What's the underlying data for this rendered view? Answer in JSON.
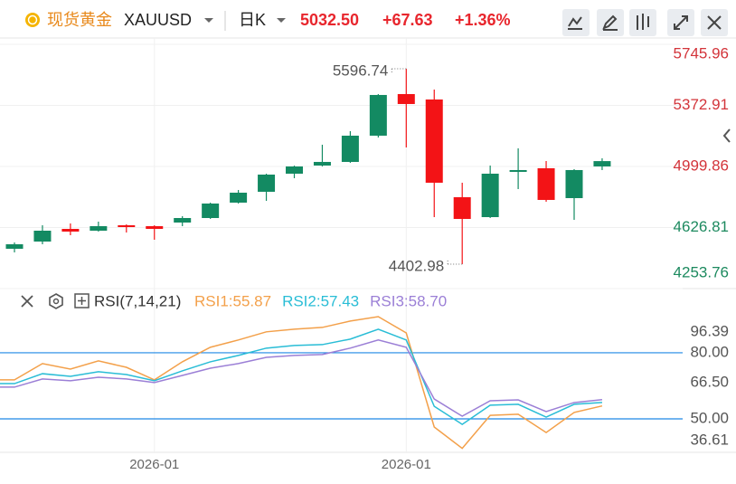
{
  "header": {
    "symbol_name": "现货黄金",
    "symbol": "XAUUSD",
    "period": "日K",
    "price": "5032.50",
    "change": "+67.63",
    "change_pct": "+1.36%"
  },
  "chart_data": [
    {
      "type": "candlestick",
      "categories": [
        null,
        null,
        null,
        null,
        null,
        "2026-01",
        null,
        null,
        null,
        null,
        null,
        null,
        null,
        null,
        "2026-01",
        null,
        null,
        null,
        null,
        null,
        null,
        null
      ],
      "open": [
        4497.0,
        4541.0,
        4618.5,
        4607.4,
        4640.6,
        4635.0,
        4657.2,
        4684.8,
        4778.8,
        4845.1,
        4955.6,
        5005.4,
        5027.5,
        5187.8,
        5442.0,
        5408.9,
        4811.9,
        4690.3,
        4966.7,
        4988.8,
        4806.4,
        4999.86
      ],
      "high": [
        4535.6,
        4640.6,
        4651.7,
        4662.7,
        4646.0,
        4640.6,
        4695.8,
        4778.8,
        4856.0,
        4955.6,
        5005.0,
        5132.5,
        5215.4,
        5442.0,
        5596.74,
        5469.6,
        4900.4,
        5005.4,
        5110.4,
        5033.0,
        4983.3,
        5049.6
      ],
      "low": [
        4474.8,
        4524.5,
        4579.8,
        4601.9,
        4596.4,
        4552.2,
        4635.0,
        4679.3,
        4773.3,
        4789.8,
        4928.0,
        4999.9,
        5022.0,
        5176.7,
        5115.9,
        4690.3,
        4402.98,
        4684.8,
        4861.7,
        4784.3,
        4673.8,
        4977.8
      ],
      "close": [
        4524.5,
        4607.4,
        4601.9,
        4635.0,
        4629.5,
        4618.5,
        4684.8,
        4773.3,
        4839.6,
        4950.1,
        4999.86,
        5027.5,
        5187.8,
        5436.5,
        5381.2,
        4900.4,
        4679.3,
        4955.6,
        4977.8,
        4795.4,
        4977.8,
        5032.5
      ],
      "up_color": "#138a62",
      "down_color": "#f31316",
      "ylim": [
        4253.76,
        5790
      ],
      "yticks": [
        4253.76,
        4626.81,
        4999.86,
        5372.91,
        5745.96
      ],
      "grid": true
    },
    {
      "type": "line",
      "title": "RSI(7,14,21)",
      "series": [
        {
          "name": "RSI1:55.87",
          "color": "#f3a04a",
          "values": [
            67.7,
            75.1,
            72.6,
            76.3,
            73.4,
            67.7,
            75.9,
            82.5,
            85.8,
            89.5,
            90.7,
            91.5,
            94.4,
            96.39,
            89.0,
            46.3,
            36.61,
            51.6,
            52.1,
            43.8,
            52.9,
            55.87
          ]
        },
        {
          "name": "RSI2:57.43",
          "color": "#29bdd6",
          "values": [
            66.0,
            70.5,
            69.3,
            71.4,
            70.1,
            67.3,
            71.8,
            75.9,
            78.8,
            82.1,
            83.3,
            83.7,
            86.2,
            90.7,
            85.8,
            55.7,
            47.5,
            56.2,
            56.6,
            50.8,
            56.6,
            57.43
          ]
        },
        {
          "name": "RSI3:58.70",
          "color": "#9b7fd6",
          "values": [
            64.4,
            68.1,
            67.3,
            68.9,
            68.1,
            66.5,
            69.7,
            73.0,
            75.1,
            77.9,
            78.8,
            79.2,
            82.1,
            85.8,
            82.5,
            59.0,
            51.2,
            58.2,
            58.6,
            53.3,
            57.4,
            58.7
          ]
        }
      ],
      "ylim": [
        34.8,
        107.9
      ],
      "yticks": [
        36.61,
        {
          "value": 50,
          "label": "50.00",
          "color": "#1e88e5"
        },
        {
          "value": 66.5,
          "label": "66.50"
        },
        {
          "value": 80,
          "label": "80.00",
          "color": "#1e88e5"
        },
        96.39
      ]
    }
  ]
}
